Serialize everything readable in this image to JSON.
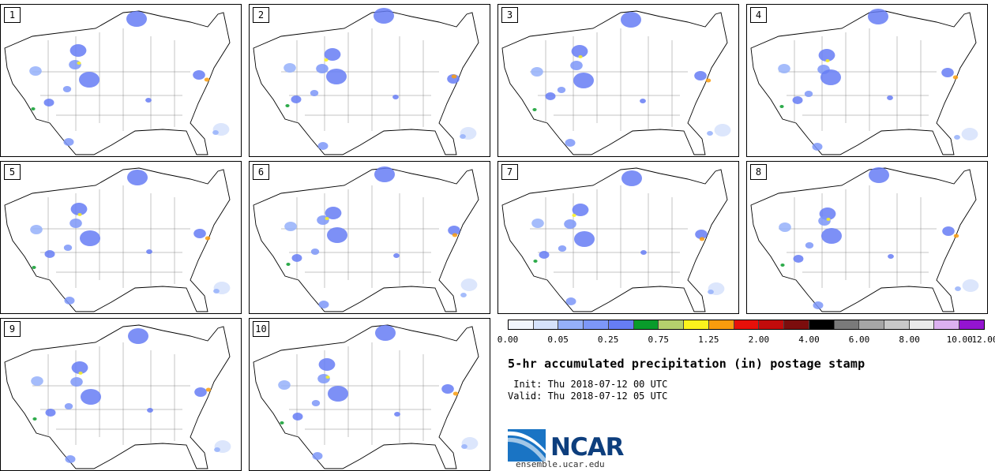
{
  "stamps": [
    {
      "label": "1"
    },
    {
      "label": "2"
    },
    {
      "label": "3"
    },
    {
      "label": "4"
    },
    {
      "label": "5"
    },
    {
      "label": "6"
    },
    {
      "label": "7"
    },
    {
      "label": "8"
    },
    {
      "label": "9"
    },
    {
      "label": "10"
    }
  ],
  "legend": {
    "colors": [
      "#f2f6fd",
      "#d6e2fb",
      "#95b0fa",
      "#7d97f8",
      "#667df4",
      "#099c2b",
      "#b5d06d",
      "#fbf31d",
      "#fa9c0d",
      "#e8100a",
      "#c20b0b",
      "#7c0d0d",
      "#000000",
      "#7a7a7a",
      "#a6a6a6",
      "#c8c8c8",
      "#eaeaea",
      "#dcb0f0",
      "#9414d0"
    ],
    "tick_labels": [
      "0.00",
      "0.05",
      "0.25",
      "0.75",
      "1.25",
      "2.00",
      "4.00",
      "6.00",
      "8.00",
      "10.00",
      "12.00"
    ],
    "tick_index": [
      0,
      2,
      4,
      6,
      8,
      10,
      12,
      14,
      16,
      18,
      20
    ]
  },
  "title": "5-hr accumulated precipitation (in) postage stamp",
  "init_line": " Init: Thu 2018-07-12 00 UTC",
  "valid_line": "Valid: Thu 2018-07-12 05 UTC",
  "logo": {
    "text": "NCAR",
    "site": "ensemble.ucar.edu"
  },
  "colors": {
    "logo_blue": "#0d3e7d",
    "logo_light": "#1a74c4"
  }
}
